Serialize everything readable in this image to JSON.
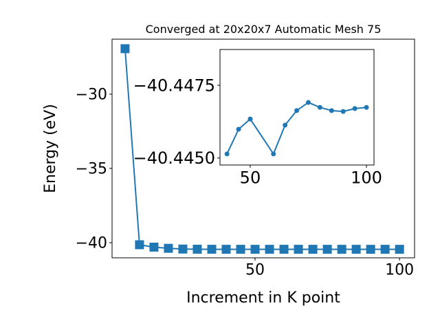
{
  "chart_data": [
    {
      "type": "line",
      "title": "Converged at 20x20x7 Automatic Mesh 75",
      "xlabel": "Increment in K point",
      "ylabel": "Energy (eV)",
      "marker": "square",
      "x": [
        5,
        10,
        15,
        20,
        25,
        30,
        35,
        40,
        45,
        50,
        55,
        60,
        65,
        70,
        75,
        80,
        85,
        90,
        95,
        100
      ],
      "series": [
        {
          "name": null,
          "color": "#1f77b4",
          "values": [
            -26.94,
            -40.14,
            -40.3,
            -40.38,
            -40.43,
            -40.44,
            -40.445,
            -40.44514,
            -40.44599,
            -40.44634,
            -40.4458,
            -40.44514,
            -40.44613,
            -40.44663,
            -40.44691,
            -40.44674,
            -40.44663,
            -40.4466,
            -40.4467,
            -40.44674
          ]
        }
      ],
      "xlim": [
        0.5,
        105.2
      ],
      "ylim": [
        -41.02,
        -26.3
      ],
      "xticks": [
        50,
        100
      ],
      "yticks": [
        {
          "value": -30,
          "label": "−30"
        },
        {
          "value": -35,
          "label": "−35"
        },
        {
          "value": -40,
          "label": "−40"
        }
      ]
    },
    {
      "type": "line",
      "marker": "circle",
      "x": [
        40,
        45,
        50,
        60,
        65,
        70,
        75,
        80,
        85,
        90,
        95,
        100
      ],
      "series": [
        {
          "name": null,
          "color": "#1f77b4",
          "values": [
            -40.44514,
            -40.44599,
            -40.44634,
            -40.44514,
            -40.44613,
            -40.44663,
            -40.44691,
            -40.44674,
            -40.44663,
            -40.4466,
            -40.4467,
            -40.44674
          ]
        }
      ],
      "xlim": [
        37.0,
        103.25
      ],
      "ylim": [
        -40.44476,
        -40.44873
      ],
      "xticks": [
        50,
        100
      ],
      "yticks": [
        {
          "value": -40.4475,
          "label": "−40.4475"
        },
        {
          "value": -40.445,
          "label": "−40.4450"
        }
      ]
    }
  ]
}
